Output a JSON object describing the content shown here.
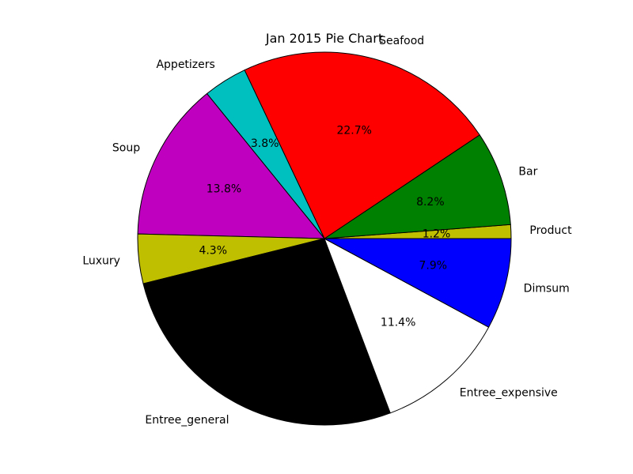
{
  "chart_data": {
    "type": "pie",
    "title": "Jan 2015 Pie Chart",
    "start_angle_deg": 0,
    "direction": "counterclockwise",
    "slices": [
      {
        "label": "Product",
        "value": 1.2,
        "pct_label": "1.2%",
        "color": "#bfbf00"
      },
      {
        "label": "Bar",
        "value": 8.2,
        "pct_label": "8.2%",
        "color": "#008000"
      },
      {
        "label": "Seafood",
        "value": 22.7,
        "pct_label": "22.7%",
        "color": "#ff0000"
      },
      {
        "label": "Appetizers",
        "value": 3.8,
        "pct_label": "3.8%",
        "color": "#00bfbf"
      },
      {
        "label": "Soup",
        "value": 13.8,
        "pct_label": "13.8%",
        "color": "#bf00bf"
      },
      {
        "label": "Luxury",
        "value": 4.3,
        "pct_label": "4.3%",
        "color": "#bfbf00"
      },
      {
        "label": "Entree_general",
        "value": 26.9,
        "pct_label": "",
        "color": "#000000"
      },
      {
        "label": "Entree_expensive",
        "value": 11.4,
        "pct_label": "11.4%",
        "color": "#ffffff"
      },
      {
        "label": "Dimsum",
        "value": 7.9,
        "pct_label": "7.9%",
        "color": "#0000ff"
      }
    ]
  }
}
